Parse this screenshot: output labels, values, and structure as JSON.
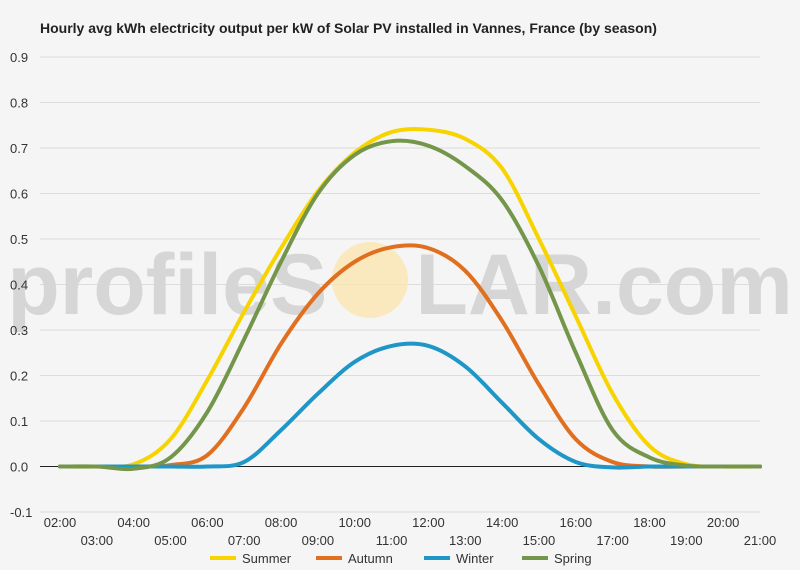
{
  "chart_data": {
    "type": "line",
    "title": "Hourly avg kWh electricity output per kW of Solar PV installed in Vannes, France (by season)",
    "watermark": {
      "before": "profileS",
      "after": "LAR.com"
    },
    "xlabel": "",
    "ylabel": "",
    "x": [
      "02:00",
      "03:00",
      "04:00",
      "05:00",
      "06:00",
      "07:00",
      "08:00",
      "09:00",
      "10:00",
      "11:00",
      "12:00",
      "13:00",
      "14:00",
      "15:00",
      "16:00",
      "17:00",
      "18:00",
      "19:00",
      "20:00",
      "21:00"
    ],
    "ylim": [
      -0.1,
      0.9
    ],
    "yticks": [
      "-0.1",
      "0.0",
      "0.1",
      "0.2",
      "0.3",
      "0.4",
      "0.5",
      "0.6",
      "0.7",
      "0.8",
      "0.9"
    ],
    "grid": true,
    "legend_position": "bottom",
    "series": [
      {
        "name": "Summer",
        "color": "#f7d300",
        "values": [
          0,
          0,
          0.005,
          0.06,
          0.19,
          0.34,
          0.48,
          0.605,
          0.69,
          0.735,
          0.74,
          0.72,
          0.655,
          0.5,
          0.33,
          0.16,
          0.045,
          0.005,
          0,
          0
        ]
      },
      {
        "name": "Autumn",
        "color": "#e07020",
        "values": [
          0,
          0,
          0,
          0.003,
          0.025,
          0.13,
          0.27,
          0.38,
          0.45,
          0.482,
          0.48,
          0.43,
          0.32,
          0.18,
          0.06,
          0.01,
          0,
          0,
          0,
          0
        ]
      },
      {
        "name": "Winter",
        "color": "#1f96c8",
        "values": [
          0,
          0,
          0,
          0,
          0,
          0.01,
          0.08,
          0.16,
          0.23,
          0.265,
          0.265,
          0.22,
          0.14,
          0.06,
          0.01,
          -0.002,
          0,
          0,
          0,
          0
        ]
      },
      {
        "name": "Spring",
        "color": "#74964a",
        "values": [
          0,
          0,
          -0.005,
          0.02,
          0.12,
          0.28,
          0.45,
          0.6,
          0.685,
          0.715,
          0.705,
          0.66,
          0.585,
          0.44,
          0.25,
          0.08,
          0.02,
          0.002,
          0,
          0
        ]
      }
    ]
  }
}
